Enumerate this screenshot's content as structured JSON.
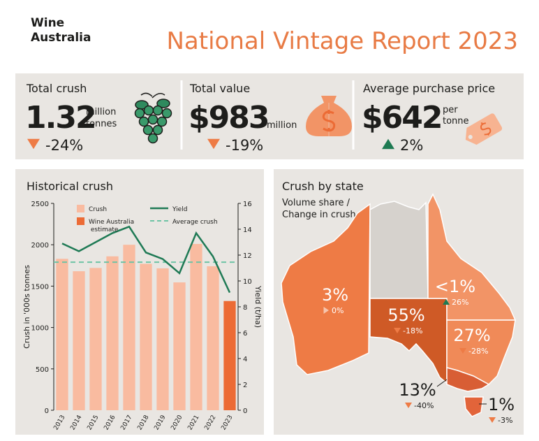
{
  "header": {
    "logo": [
      "Wine",
      "Australia"
    ],
    "title": "National Vintage Report 2023"
  },
  "kpis": [
    {
      "label": "Total crush",
      "value": "1.32",
      "unit": [
        "million",
        "tonnes"
      ],
      "change": "-24%",
      "trend": "down"
    },
    {
      "label": "Total value",
      "value": "$983",
      "unit": [
        "million"
      ],
      "change": "-19%",
      "trend": "down"
    },
    {
      "label": "Average purchase price",
      "value": "$642",
      "unit": [
        "per",
        "tonne"
      ],
      "change": "2%",
      "trend": "up"
    }
  ],
  "chart_data": {
    "type": "bar",
    "title": "Historical crush",
    "categories": [
      "2013",
      "2014",
      "2015",
      "2016",
      "2017",
      "2018",
      "2019",
      "2020",
      "2021",
      "2022",
      "2023"
    ],
    "series": [
      {
        "name": "Crush",
        "type": "bar",
        "color": "#f9bba0",
        "values": [
          1830,
          1680,
          1720,
          1860,
          2000,
          1770,
          1715,
          1545,
          2010,
          1740,
          null
        ]
      },
      {
        "name": "Wine Australia estimate",
        "type": "bar",
        "color": "#ec6b35",
        "values": [
          null,
          null,
          null,
          null,
          null,
          null,
          null,
          null,
          null,
          null,
          1320
        ]
      },
      {
        "name": "Yield",
        "type": "line",
        "axis": "y2",
        "color": "#1f7a55",
        "values": [
          12.9,
          12.3,
          13.0,
          13.7,
          14.2,
          12.2,
          11.7,
          10.6,
          13.7,
          11.9,
          9.1
        ]
      }
    ],
    "average": {
      "name": "Average crush",
      "value": 1790,
      "color": "#6ec3a5"
    },
    "ylabel": "Crush in '000s tonnes",
    "y2label": "Yield (t/ha)",
    "ylim": [
      0,
      2500
    ],
    "yticks": [
      0,
      500,
      1000,
      1500,
      2000,
      2500
    ],
    "y2lim": [
      0,
      16
    ],
    "y2ticks": [
      0,
      2,
      4,
      6,
      8,
      10,
      12,
      14,
      16
    ]
  },
  "map": {
    "title": "Crush by state",
    "subtitle": [
      "Volume share /",
      "Change in crush"
    ],
    "states": [
      {
        "share": "3%",
        "change": "0%",
        "trend": "flat",
        "color": "#ee7b45"
      },
      {
        "share": null,
        "change": null,
        "trend": null,
        "color": "#d6d2cd"
      },
      {
        "share": "55%",
        "change": "-18%",
        "trend": "down",
        "color": "#cf5a26"
      },
      {
        "share": "<1%",
        "change": "26%",
        "trend": "up",
        "color": "#f29466"
      },
      {
        "share": "27%",
        "change": "-28%",
        "trend": "down",
        "color": "#f08a58"
      },
      {
        "share": "13%",
        "change": "-40%",
        "trend": "down",
        "color": "#d85e35"
      },
      {
        "share": "1%",
        "change": "-3%",
        "trend": "down",
        "color": "#e2643a"
      }
    ]
  }
}
